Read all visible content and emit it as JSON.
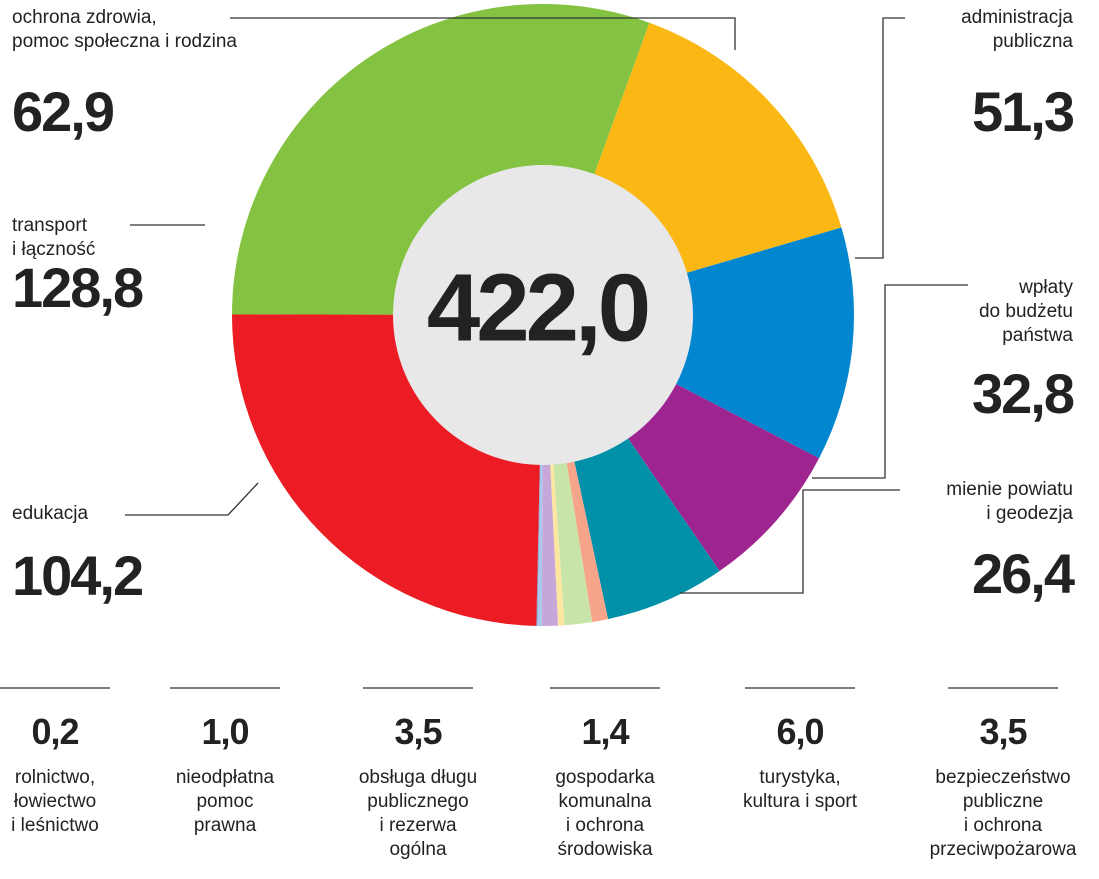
{
  "chart_data": {
    "type": "donut",
    "center_label": {
      "value": 422.0,
      "label": "422,0"
    },
    "categories": [
      "ochrona zdrowia,\npomoc społeczna i rodzina",
      "administracja\npubliczna",
      "wpłaty\ndo budżetu\npaństwa",
      "mienie powiatu\ni geodezja",
      "bezpieczeństwo\npubliczne\ni ochrona\nprzeciwpożarowa",
      "turystyka,\nkultura i sport",
      "gospodarka\nkomunalna\ni ochrona\nśrodowiska",
      "obsługa długu\npublicznego\ni rezerwa\nogólna",
      "nieodpłatna\npomoc\nprawna",
      "rolnictwo,\nłowiectwo\ni leśnictwo",
      "edukacja",
      "transport\ni łączność"
    ],
    "values": [
      62.9,
      51.3,
      32.8,
      26.4,
      3.5,
      6.0,
      1.4,
      3.5,
      1.0,
      0.2,
      104.2,
      128.8
    ],
    "value_labels": [
      "62,9",
      "51,3",
      "32,8",
      "26,4",
      "3,5",
      "6,0",
      "1,4",
      "3,5",
      "1,0",
      "0,2",
      "104,2",
      "128,8"
    ],
    "colors": [
      "#fbb714",
      "#0286d0",
      "#9e248f",
      "#0090a8",
      "#f7a58a",
      "#c9e4a8",
      "#fde7a0",
      "#c7a7d9",
      "#a8c8ec",
      "#7d9ac9",
      "#ec1c24",
      "#84c341"
    ]
  }
}
